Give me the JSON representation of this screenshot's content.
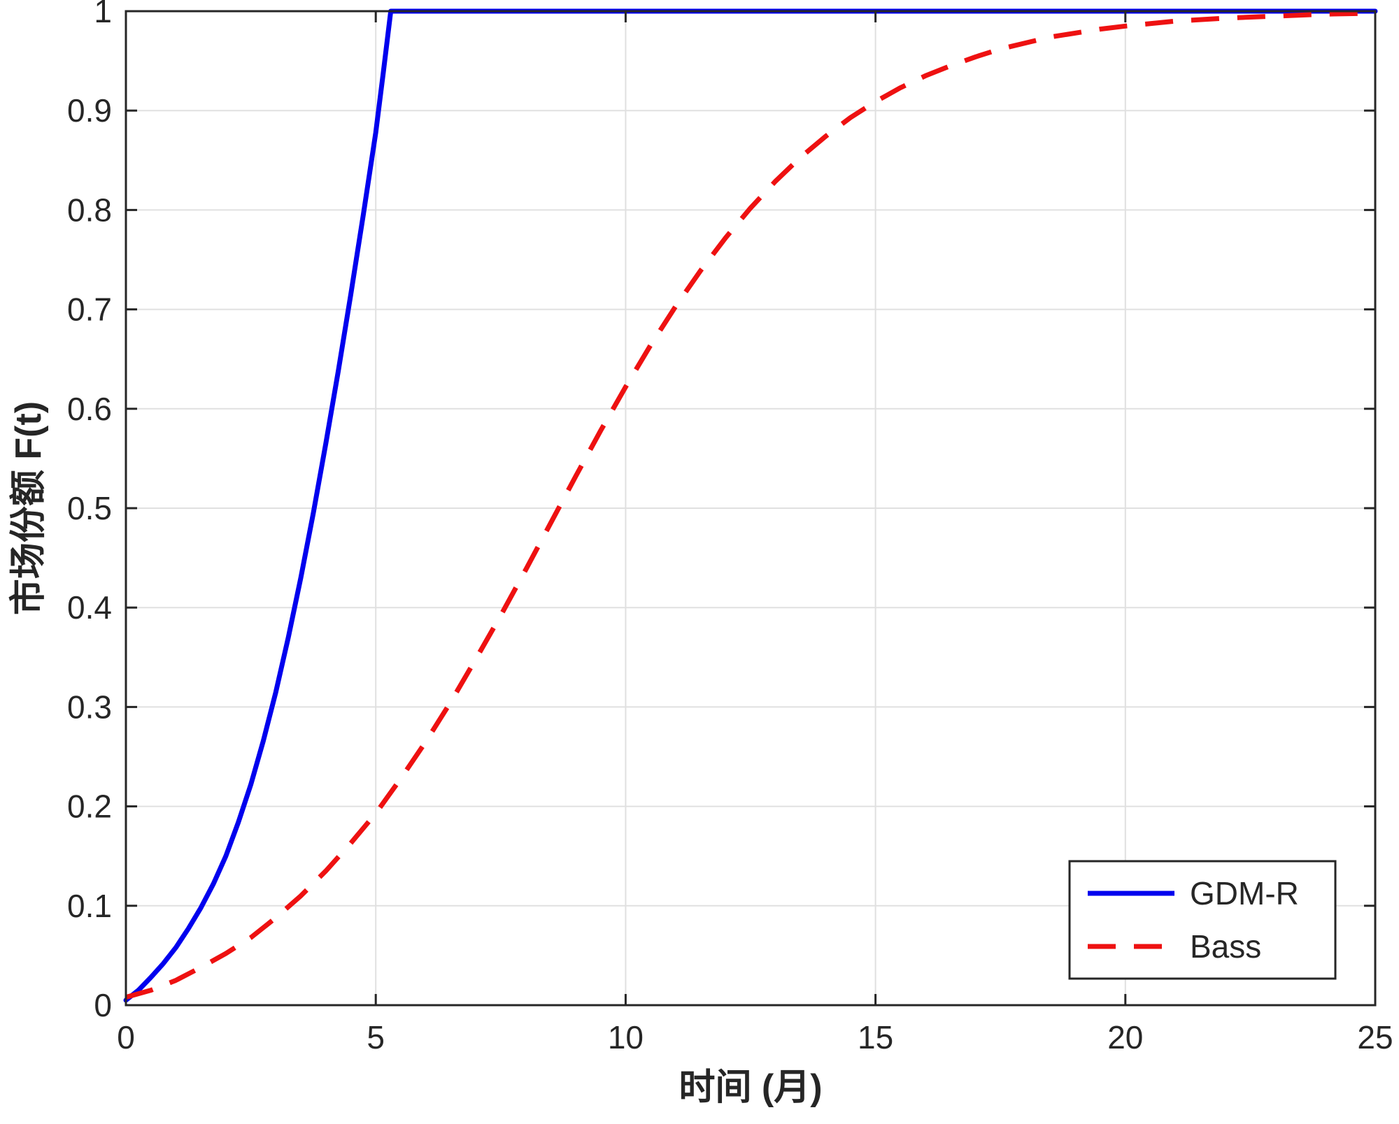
{
  "figure": {
    "background": "#ffffff",
    "axis_color": "#262626",
    "grid_color": "#e0e0e0",
    "text_color": "#262626"
  },
  "chart_data": {
    "type": "line",
    "title": "",
    "xlabel": "时间 (月)",
    "ylabel": "市场份额 F(t)",
    "xlim": [
      0,
      25
    ],
    "ylim": [
      0,
      1
    ],
    "xticks": [
      0,
      5,
      10,
      15,
      20,
      25
    ],
    "xtick_labels": [
      "0",
      "5",
      "10",
      "15",
      "20",
      "25"
    ],
    "yticks": [
      0,
      0.1,
      0.2,
      0.3,
      0.4,
      0.5,
      0.6,
      0.7,
      0.8,
      0.9,
      1
    ],
    "ytick_labels": [
      "0",
      "0.1",
      "0.2",
      "0.3",
      "0.4",
      "0.5",
      "0.6",
      "0.7",
      "0.8",
      "0.9",
      "1"
    ],
    "grid": true,
    "legend": {
      "position": "lower-right"
    },
    "series": [
      {
        "name": "GDM-R",
        "color": "#0000ee",
        "style": "solid",
        "line_width": 7,
        "x": [
          0,
          0.25,
          0.5,
          0.75,
          1,
          1.25,
          1.5,
          1.75,
          2,
          2.25,
          2.5,
          2.75,
          3,
          3.25,
          3.5,
          3.75,
          4,
          4.25,
          4.5,
          4.75,
          5,
          5.15,
          5.3,
          6,
          8,
          10,
          15,
          20,
          25
        ],
        "y": [
          0.005,
          0.015,
          0.028,
          0.042,
          0.058,
          0.077,
          0.098,
          0.122,
          0.15,
          0.184,
          0.222,
          0.266,
          0.315,
          0.37,
          0.43,
          0.495,
          0.565,
          0.638,
          0.715,
          0.795,
          0.878,
          0.938,
          1,
          1,
          1,
          1,
          1,
          1,
          1
        ]
      },
      {
        "name": "Bass",
        "color": "#ee1111",
        "style": "dashed",
        "line_width": 7,
        "x": [
          0,
          0.5,
          1,
          1.5,
          2,
          2.5,
          3,
          3.5,
          4,
          4.5,
          5,
          5.5,
          6,
          6.5,
          7,
          7.5,
          8,
          8.5,
          9,
          9.5,
          10,
          10.5,
          11,
          11.5,
          12,
          12.5,
          13,
          13.5,
          14,
          14.5,
          15,
          15.5,
          16,
          16.5,
          17,
          17.5,
          18,
          18.5,
          19,
          19.5,
          20,
          21,
          22,
          23,
          24,
          25
        ],
        "y": [
          0.008,
          0.015,
          0.025,
          0.038,
          0.052,
          0.068,
          0.088,
          0.11,
          0.135,
          0.163,
          0.193,
          0.228,
          0.265,
          0.305,
          0.348,
          0.392,
          0.438,
          0.485,
          0.532,
          0.578,
          0.622,
          0.664,
          0.703,
          0.739,
          0.772,
          0.802,
          0.829,
          0.853,
          0.874,
          0.893,
          0.909,
          0.923,
          0.935,
          0.945,
          0.954,
          0.962,
          0.968,
          0.974,
          0.978,
          0.982,
          0.985,
          0.99,
          0.993,
          0.995,
          0.997,
          0.998
        ]
      }
    ]
  }
}
